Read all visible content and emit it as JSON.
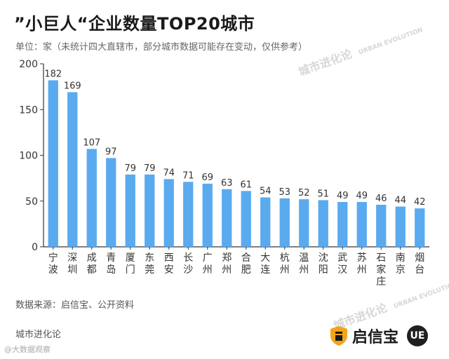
{
  "header": {
    "title": "”小巨人“企业数量TOP20城市",
    "unit": "单位：家（未统计四大直辖市，部分城市数据可能存在变动，仅供参考）"
  },
  "watermark": {
    "text": "城市进化论",
    "text_en": "URBAN EVOLUTION"
  },
  "footer": {
    "source": "数据来源：启信宝、公开资料",
    "left_label": "城市进化论",
    "brand_name": "启信宝",
    "badge_text": "UE",
    "credit": "@大数据观察"
  },
  "colors": {
    "bar": "#5aaaf0",
    "axis": "#333333",
    "text": "#333333"
  },
  "chart_data": {
    "type": "bar",
    "title": "”小巨人“企业数量TOP20城市",
    "xlabel": "",
    "ylabel": "",
    "ylim": [
      0,
      200
    ],
    "yticks": [
      0,
      50,
      100,
      150,
      200
    ],
    "grid": false,
    "categories": [
      "宁波",
      "深圳",
      "成都",
      "青岛",
      "厦门",
      "东莞",
      "西安",
      "长沙",
      "广州",
      "郑州",
      "合肥",
      "大连",
      "杭州",
      "温州",
      "沈阳",
      "武汉",
      "苏州",
      "石家庄",
      "南京",
      "烟台"
    ],
    "values": [
      182,
      169,
      107,
      97,
      79,
      79,
      74,
      71,
      69,
      63,
      61,
      54,
      53,
      52,
      51,
      49,
      49,
      46,
      44,
      42
    ]
  }
}
